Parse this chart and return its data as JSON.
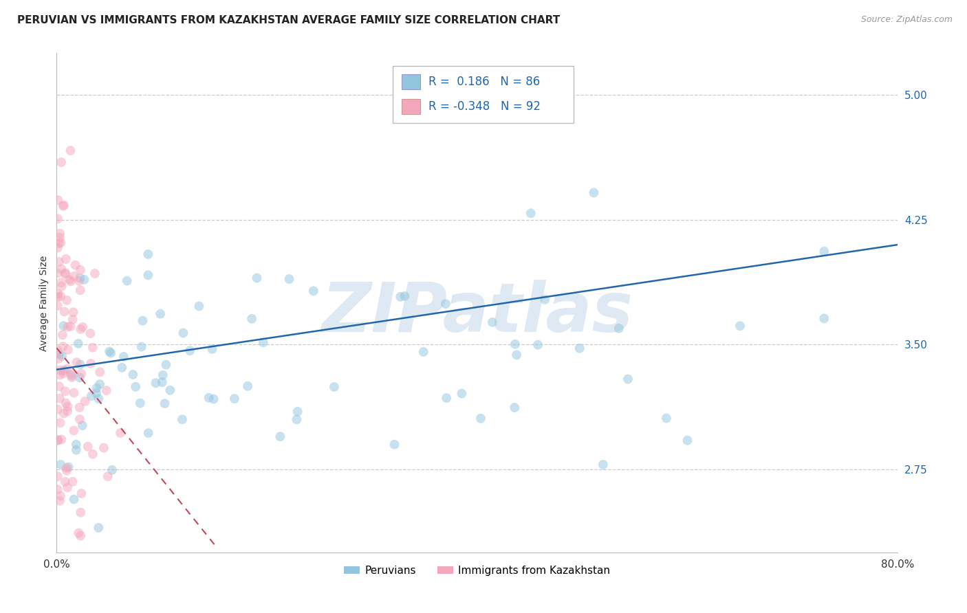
{
  "title": "PERUVIAN VS IMMIGRANTS FROM KAZAKHSTAN AVERAGE FAMILY SIZE CORRELATION CHART",
  "source": "Source: ZipAtlas.com",
  "ylabel": "Average Family Size",
  "watermark": "ZIPatlas",
  "legend_label1": "Peruvians",
  "legend_label2": "Immigrants from Kazakhstan",
  "R1": 0.186,
  "N1": 86,
  "R2": -0.348,
  "N2": 92,
  "color1": "#92c5de",
  "color2": "#f4a6bc",
  "trendline1_color": "#2166ac",
  "trendline2_color": "#c0485a",
  "xlim": [
    0.0,
    0.8
  ],
  "ylim": [
    2.25,
    5.25
  ],
  "yticks": [
    2.75,
    3.5,
    4.25,
    5.0
  ],
  "yticklabels": [
    "2.75",
    "3.50",
    "4.25",
    "5.00"
  ],
  "xticks": [
    0.0,
    0.8
  ],
  "xticklabels": [
    "0.0%",
    "80.0%"
  ],
  "background_color": "#ffffff",
  "title_fontsize": 11,
  "axis_label_fontsize": 10,
  "tick_fontsize": 11,
  "scatter_alpha": 0.5,
  "scatter_size": 100,
  "blue_trend_x0": 0.0,
  "blue_trend_y0": 3.35,
  "blue_trend_x1": 0.8,
  "blue_trend_y1": 4.1,
  "pink_trend_x0": 0.0,
  "pink_trend_y0": 3.48,
  "pink_trend_x1": 0.15,
  "pink_trend_y1": 2.3
}
